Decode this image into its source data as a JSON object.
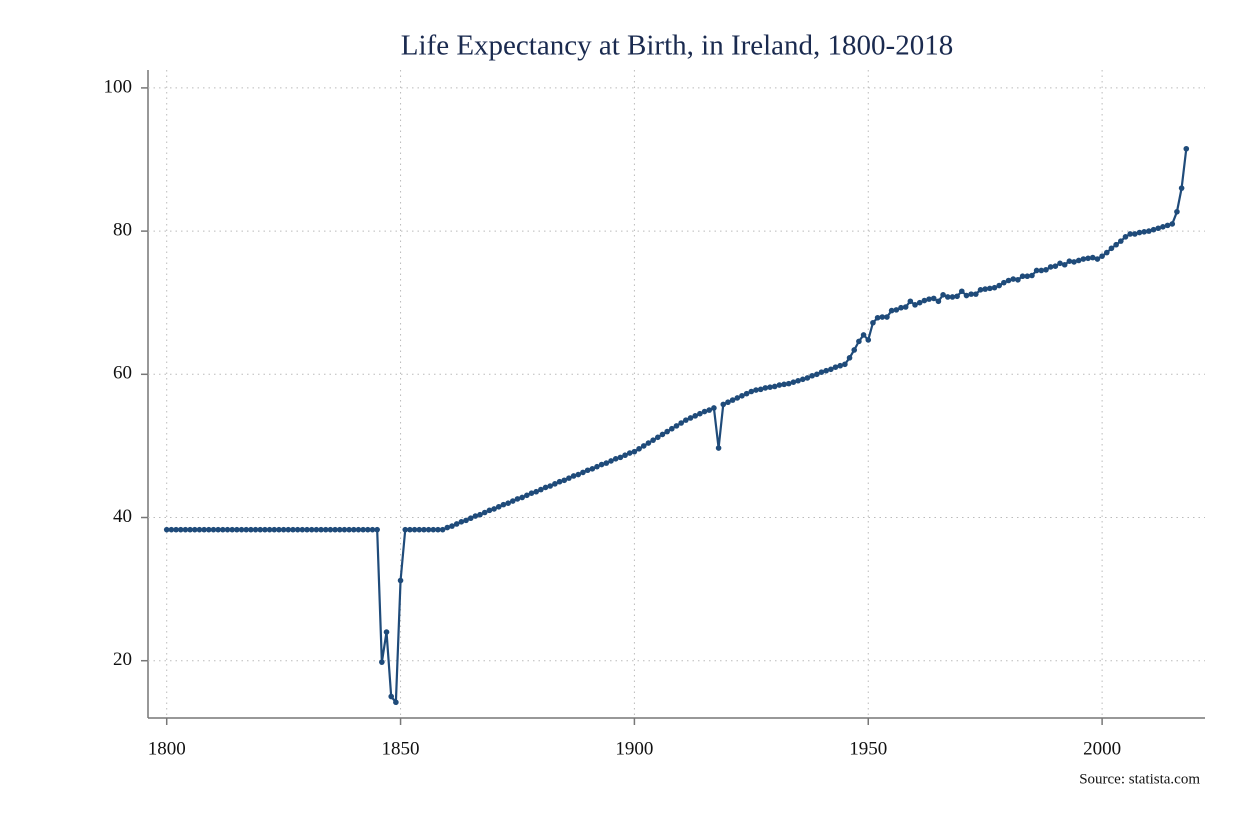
{
  "chart_data": {
    "type": "line",
    "title": "Life Expectancy at Birth, in Ireland, 1800-2018",
    "source": "Source: statista.com",
    "x": [
      1800,
      1801,
      1802,
      1803,
      1804,
      1805,
      1806,
      1807,
      1808,
      1809,
      1810,
      1811,
      1812,
      1813,
      1814,
      1815,
      1816,
      1817,
      1818,
      1819,
      1820,
      1821,
      1822,
      1823,
      1824,
      1825,
      1826,
      1827,
      1828,
      1829,
      1830,
      1831,
      1832,
      1833,
      1834,
      1835,
      1836,
      1837,
      1838,
      1839,
      1840,
      1841,
      1842,
      1843,
      1844,
      1845,
      1846,
      1847,
      1848,
      1849,
      1850,
      1851,
      1852,
      1853,
      1854,
      1855,
      1856,
      1857,
      1858,
      1859,
      1860,
      1861,
      1862,
      1863,
      1864,
      1865,
      1866,
      1867,
      1868,
      1869,
      1870,
      1871,
      1872,
      1873,
      1874,
      1875,
      1876,
      1877,
      1878,
      1879,
      1880,
      1881,
      1882,
      1883,
      1884,
      1885,
      1886,
      1887,
      1888,
      1889,
      1890,
      1891,
      1892,
      1893,
      1894,
      1895,
      1896,
      1897,
      1898,
      1899,
      1900,
      1901,
      1902,
      1903,
      1904,
      1905,
      1906,
      1907,
      1908,
      1909,
      1910,
      1911,
      1912,
      1913,
      1914,
      1915,
      1916,
      1917,
      1918,
      1919,
      1920,
      1921,
      1922,
      1923,
      1924,
      1925,
      1926,
      1927,
      1928,
      1929,
      1930,
      1931,
      1932,
      1933,
      1934,
      1935,
      1936,
      1937,
      1938,
      1939,
      1940,
      1941,
      1942,
      1943,
      1944,
      1945,
      1946,
      1947,
      1948,
      1949,
      1950,
      1951,
      1952,
      1953,
      1954,
      1955,
      1956,
      1957,
      1958,
      1959,
      1960,
      1961,
      1962,
      1963,
      1964,
      1965,
      1966,
      1967,
      1968,
      1969,
      1970,
      1971,
      1972,
      1973,
      1974,
      1975,
      1976,
      1977,
      1978,
      1979,
      1980,
      1981,
      1982,
      1983,
      1984,
      1985,
      1986,
      1987,
      1988,
      1989,
      1990,
      1991,
      1992,
      1993,
      1994,
      1995,
      1996,
      1997,
      1998,
      1999,
      2000,
      2001,
      2002,
      2003,
      2004,
      2005,
      2006,
      2007,
      2008,
      2009,
      2010,
      2011,
      2012,
      2013,
      2014,
      2015,
      2016,
      2017,
      2018
    ],
    "series": [
      {
        "color": "#1f4b7a",
        "values": [
          38.3,
          38.3,
          38.3,
          38.3,
          38.3,
          38.3,
          38.3,
          38.3,
          38.3,
          38.3,
          38.3,
          38.3,
          38.3,
          38.3,
          38.3,
          38.3,
          38.3,
          38.3,
          38.3,
          38.3,
          38.3,
          38.3,
          38.3,
          38.3,
          38.3,
          38.3,
          38.3,
          38.3,
          38.3,
          38.3,
          38.3,
          38.3,
          38.3,
          38.3,
          38.3,
          38.3,
          38.3,
          38.3,
          38.3,
          38.3,
          38.3,
          38.3,
          38.3,
          38.3,
          38.3,
          38.3,
          19.8,
          24.0,
          15.0,
          14.2,
          31.2,
          38.3,
          38.3,
          38.3,
          38.3,
          38.3,
          38.3,
          38.3,
          38.3,
          38.3,
          38.6,
          38.8,
          39.1,
          39.4,
          39.6,
          39.9,
          40.2,
          40.4,
          40.7,
          41.0,
          41.2,
          41.5,
          41.8,
          42.0,
          42.3,
          42.6,
          42.8,
          43.1,
          43.4,
          43.6,
          43.9,
          44.2,
          44.4,
          44.7,
          45.0,
          45.2,
          45.5,
          45.8,
          46.0,
          46.3,
          46.6,
          46.8,
          47.1,
          47.4,
          47.6,
          47.9,
          48.2,
          48.4,
          48.7,
          49.0,
          49.2,
          49.6,
          50.0,
          50.4,
          50.8,
          51.2,
          51.6,
          52.0,
          52.4,
          52.8,
          53.2,
          53.6,
          53.9,
          54.2,
          54.5,
          54.8,
          55.0,
          55.3,
          49.7,
          55.8,
          56.1,
          56.4,
          56.7,
          57.0,
          57.3,
          57.6,
          57.8,
          57.9,
          58.1,
          58.2,
          58.3,
          58.5,
          58.6,
          58.7,
          58.9,
          59.1,
          59.3,
          59.5,
          59.8,
          60.0,
          60.3,
          60.5,
          60.7,
          61.0,
          61.2,
          61.4,
          62.3,
          63.4,
          64.6,
          65.5,
          64.8,
          67.2,
          67.9,
          68.0,
          68.0,
          68.9,
          69.0,
          69.3,
          69.4,
          70.2,
          69.7,
          70.0,
          70.3,
          70.5,
          70.6,
          70.2,
          71.1,
          70.8,
          70.8,
          70.9,
          71.6,
          71.0,
          71.2,
          71.2,
          71.8,
          71.9,
          72.0,
          72.1,
          72.4,
          72.8,
          73.1,
          73.3,
          73.2,
          73.7,
          73.7,
          73.8,
          74.5,
          74.5,
          74.6,
          75.0,
          75.1,
          75.5,
          75.3,
          75.8,
          75.7,
          75.9,
          76.1,
          76.2,
          76.3,
          76.1,
          76.5,
          77.0,
          77.6,
          78.1,
          78.6,
          79.2,
          79.6,
          79.6,
          79.8,
          79.9,
          80.0,
          80.2,
          80.4,
          80.6,
          80.8,
          81.0,
          82.7,
          86.0,
          91.5
        ]
      }
    ],
    "xlim": [
      1796,
      2022
    ],
    "ylim": [
      12,
      102.5
    ],
    "xticks": [
      1800,
      1850,
      1900,
      1950,
      2000
    ],
    "yticks": [
      20,
      40,
      60,
      80,
      100
    ],
    "grid": true
  }
}
